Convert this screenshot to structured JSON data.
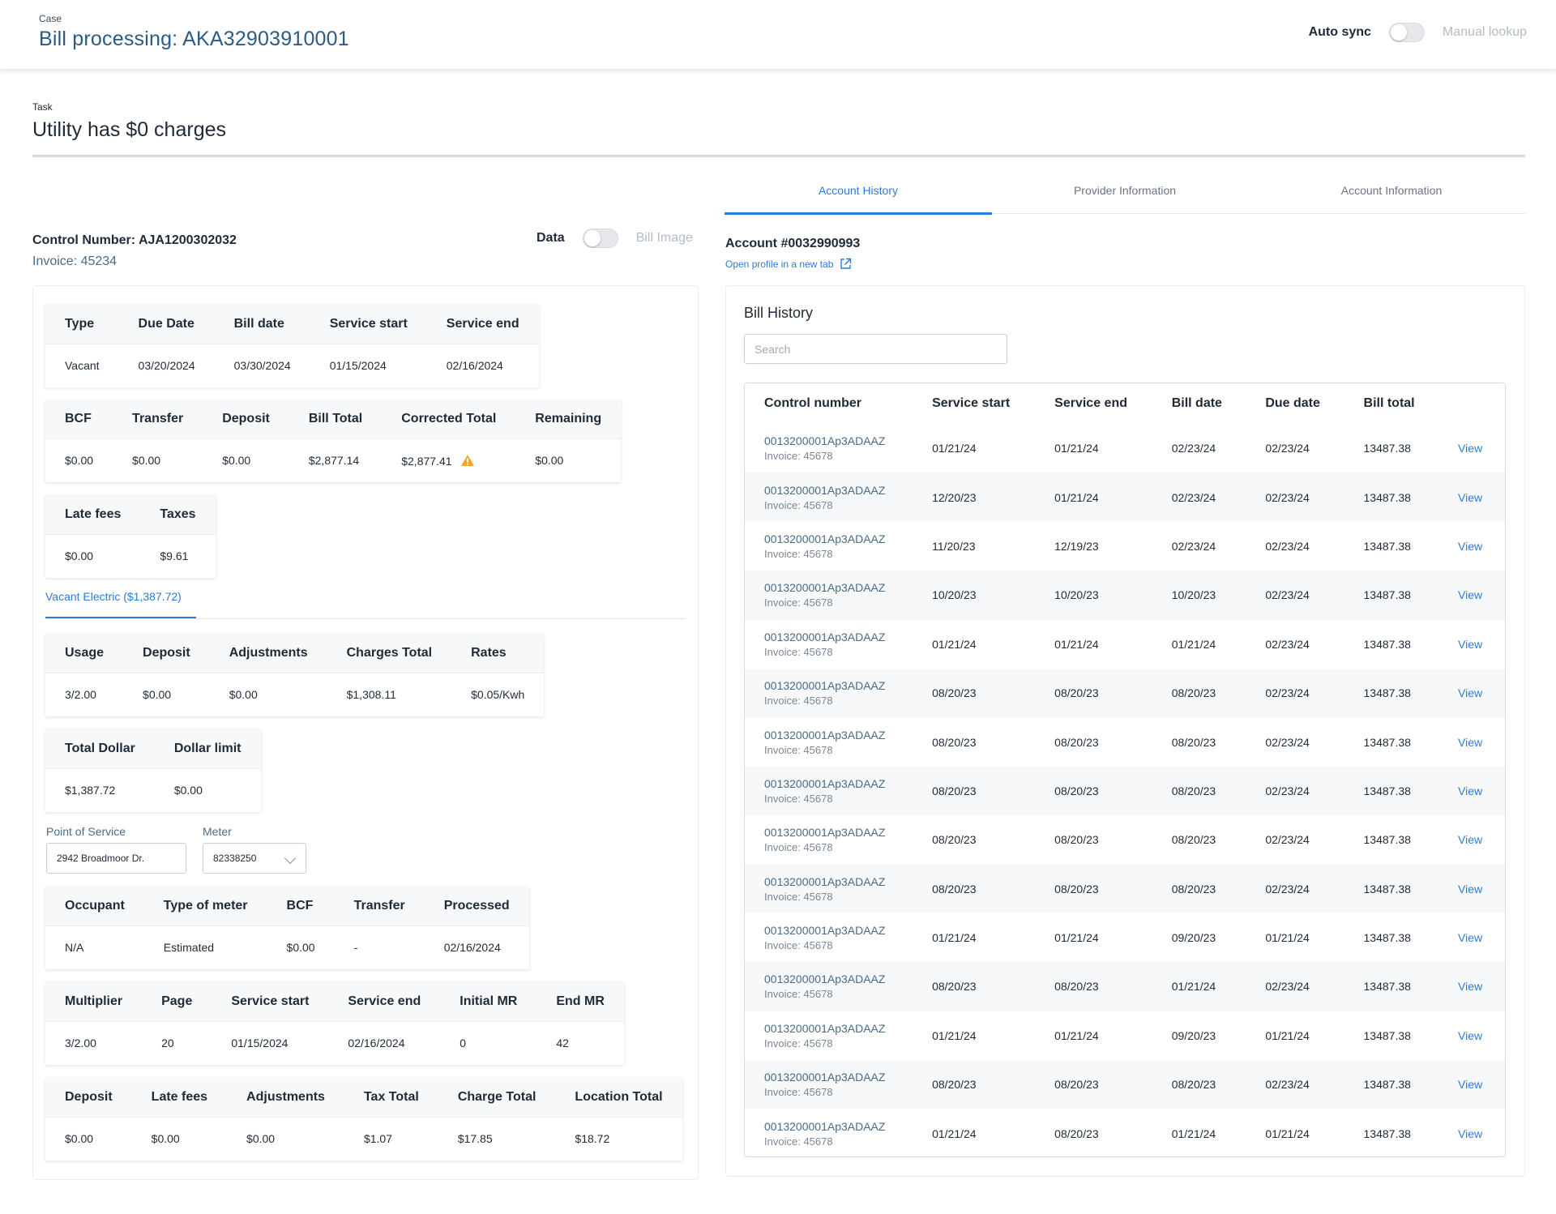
{
  "header": {
    "case_label": "Case",
    "case_title": "Bill processing: AKA32903910001",
    "auto_sync_label": "Auto sync",
    "manual_lookup_label": "Manual lookup"
  },
  "task": {
    "label": "Task",
    "title": "Utility has $0 charges"
  },
  "summary": {
    "control_number": "Control Number: AJA1200302032",
    "invoice": "Invoice: 45234",
    "toggle_on_label": "Data",
    "toggle_off_label": "Bill Image"
  },
  "bill_table": {
    "headers": [
      "Type",
      "Due Date",
      "Bill date",
      "Service start",
      "Service end"
    ],
    "values": [
      "Vacant",
      "03/20/2024",
      "03/30/2024",
      "01/15/2024",
      "02/16/2024"
    ]
  },
  "totals_table": {
    "headers": [
      "BCF",
      "Transfer",
      "Deposit",
      "Bill Total",
      "Corrected Total",
      "Remaining"
    ],
    "values": [
      "$0.00",
      "$0.00",
      "$0.00",
      "$2,877.14",
      "$2,877.41",
      "$0.00"
    ],
    "warning_icon": "warning-icon"
  },
  "fees_table": {
    "headers": [
      "Late fees",
      "Taxes"
    ],
    "values": [
      "$0.00",
      "$9.61"
    ]
  },
  "subtab": {
    "label": "Vacant Electric ($1,387.72)"
  },
  "usage_table": {
    "headers": [
      "Usage",
      "Deposit",
      "Adjustments",
      "Charges Total",
      "Rates"
    ],
    "values": [
      "3/2.00",
      "$0.00",
      "$0.00",
      "$1,308.11",
      "$0.05/Kwh"
    ]
  },
  "dollar_table": {
    "headers": [
      "Total Dollar",
      "Dollar limit"
    ],
    "values": [
      "$1,387.72",
      "$0.00"
    ]
  },
  "point_of_service": {
    "label": "Point of Service",
    "value": "2942 Broadmoor Dr."
  },
  "meter": {
    "label": "Meter",
    "value": "82338250"
  },
  "occupant_table": {
    "headers": [
      "Occupant",
      "Type of meter",
      "BCF",
      "Transfer",
      "Processed"
    ],
    "values": [
      "N/A",
      "Estimated",
      "$0.00",
      "-",
      "02/16/2024"
    ]
  },
  "multiplier_table": {
    "headers": [
      "Multiplier",
      "Page",
      "Service start",
      "Service end",
      "Initial MR",
      "End MR"
    ],
    "values": [
      "3/2.00",
      "20",
      "01/15/2024",
      "02/16/2024",
      "0",
      "42"
    ]
  },
  "location_table": {
    "headers": [
      "Deposit",
      "Late fees",
      "Adjustments",
      "Tax Total",
      "Charge Total",
      "Location Total"
    ],
    "values": [
      "$0.00",
      "$0.00",
      "$0.00",
      "$1.07",
      "$17.85",
      "$18.72"
    ]
  },
  "tabs": [
    "Account History",
    "Provider Information",
    "Account Information"
  ],
  "account": {
    "number": "Account #0032990993",
    "open_profile": "Open profile in a new tab"
  },
  "bill_history": {
    "title": "Bill History",
    "search_placeholder": "Search",
    "headers": [
      "Control number",
      "Service start",
      "Service end",
      "Bill date",
      "Due date",
      "Bill total"
    ],
    "view_label": "View",
    "rows": [
      {
        "control": "0013200001Ap3ADAAZ",
        "invoice": "Invoice: 45678",
        "service_start": "01/21/24",
        "service_end": "01/21/24",
        "bill_date": "02/23/24",
        "due_date": "02/23/24",
        "total": "13487.38"
      },
      {
        "control": "0013200001Ap3ADAAZ",
        "invoice": "Invoice: 45678",
        "service_start": "12/20/23",
        "service_end": "01/21/24",
        "bill_date": "02/23/24",
        "due_date": "02/23/24",
        "total": "13487.38"
      },
      {
        "control": "0013200001Ap3ADAAZ",
        "invoice": "Invoice: 45678",
        "service_start": "11/20/23",
        "service_end": "12/19/23",
        "bill_date": "02/23/24",
        "due_date": "02/23/24",
        "total": "13487.38"
      },
      {
        "control": "0013200001Ap3ADAAZ",
        "invoice": "Invoice: 45678",
        "service_start": "10/20/23",
        "service_end": "10/20/23",
        "bill_date": "10/20/23",
        "due_date": "02/23/24",
        "total": "13487.38"
      },
      {
        "control": "0013200001Ap3ADAAZ",
        "invoice": "Invoice: 45678",
        "service_start": "01/21/24",
        "service_end": "01/21/24",
        "bill_date": "01/21/24",
        "due_date": "02/23/24",
        "total": "13487.38"
      },
      {
        "control": "0013200001Ap3ADAAZ",
        "invoice": "Invoice: 45678",
        "service_start": "08/20/23",
        "service_end": "08/20/23",
        "bill_date": "08/20/23",
        "due_date": "02/23/24",
        "total": "13487.38"
      },
      {
        "control": "0013200001Ap3ADAAZ",
        "invoice": "Invoice: 45678",
        "service_start": "08/20/23",
        "service_end": "08/20/23",
        "bill_date": "08/20/23",
        "due_date": "02/23/24",
        "total": "13487.38"
      },
      {
        "control": "0013200001Ap3ADAAZ",
        "invoice": "Invoice: 45678",
        "service_start": "08/20/23",
        "service_end": "08/20/23",
        "bill_date": "08/20/23",
        "due_date": "02/23/24",
        "total": "13487.38"
      },
      {
        "control": "0013200001Ap3ADAAZ",
        "invoice": "Invoice: 45678",
        "service_start": "08/20/23",
        "service_end": "08/20/23",
        "bill_date": "08/20/23",
        "due_date": "02/23/24",
        "total": "13487.38"
      },
      {
        "control": "0013200001Ap3ADAAZ",
        "invoice": "Invoice: 45678",
        "service_start": "08/20/23",
        "service_end": "08/20/23",
        "bill_date": "08/20/23",
        "due_date": "02/23/24",
        "total": "13487.38"
      },
      {
        "control": "0013200001Ap3ADAAZ",
        "invoice": "Invoice: 45678",
        "service_start": "01/21/24",
        "service_end": "01/21/24",
        "bill_date": "09/20/23",
        "due_date": "01/21/24",
        "total": "13487.38"
      },
      {
        "control": "0013200001Ap3ADAAZ",
        "invoice": "Invoice: 45678",
        "service_start": "08/20/23",
        "service_end": "08/20/23",
        "bill_date": "01/21/24",
        "due_date": "02/23/24",
        "total": "13487.38"
      },
      {
        "control": "0013200001Ap3ADAAZ",
        "invoice": "Invoice: 45678",
        "service_start": "01/21/24",
        "service_end": "01/21/24",
        "bill_date": "09/20/23",
        "due_date": "01/21/24",
        "total": "13487.38"
      },
      {
        "control": "0013200001Ap3ADAAZ",
        "invoice": "Invoice: 45678",
        "service_start": "08/20/23",
        "service_end": "08/20/23",
        "bill_date": "08/20/23",
        "due_date": "02/23/24",
        "total": "13487.38"
      },
      {
        "control": "0013200001Ap3ADAAZ",
        "invoice": "Invoice: 45678",
        "service_start": "01/21/24",
        "service_end": "08/20/23",
        "bill_date": "01/21/24",
        "due_date": "01/21/24",
        "total": "13487.38"
      }
    ]
  },
  "colors": {
    "accent": "#2d7bd8",
    "title_blue": "#2a5b84",
    "warning": "#f5a623"
  }
}
